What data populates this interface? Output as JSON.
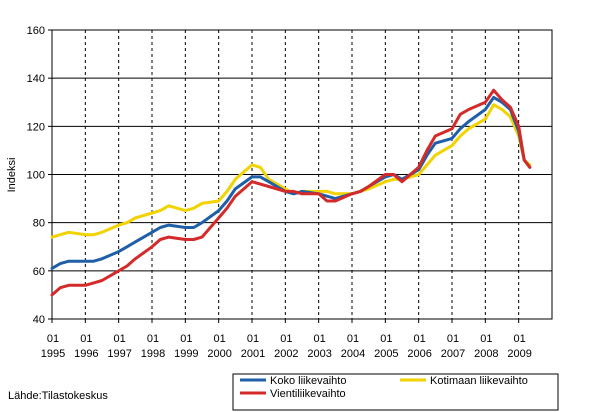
{
  "chart_data": {
    "type": "line",
    "ylabel": "Indeksi",
    "ylim": [
      40,
      160
    ],
    "yticks": [
      40,
      60,
      80,
      100,
      120,
      140,
      160
    ],
    "x_period": [
      "1995-01",
      "2009-12"
    ],
    "xticks": [
      {
        "month": "01",
        "year": "1995"
      },
      {
        "month": "01",
        "year": "1996"
      },
      {
        "month": "01",
        "year": "1997"
      },
      {
        "month": "01",
        "year": "1998"
      },
      {
        "month": "01",
        "year": "1999"
      },
      {
        "month": "01",
        "year": "2000"
      },
      {
        "month": "01",
        "year": "2001"
      },
      {
        "month": "01",
        "year": "2002"
      },
      {
        "month": "01",
        "year": "2003"
      },
      {
        "month": "01",
        "year": "2004"
      },
      {
        "month": "01",
        "year": "2005"
      },
      {
        "month": "01",
        "year": "2006"
      },
      {
        "month": "01",
        "year": "2007"
      },
      {
        "month": "01",
        "year": "2008"
      },
      {
        "month": "01",
        "year": "2009"
      }
    ],
    "grid": true,
    "legend_position": "bottom-right",
    "source": "Lähde:Tilastokeskus",
    "series": [
      {
        "name": "Koko liikevaihto",
        "color": "#1e5fa8",
        "points": [
          [
            "1995-01",
            61
          ],
          [
            "1995-04",
            63
          ],
          [
            "1995-07",
            64
          ],
          [
            "1996-01",
            64
          ],
          [
            "1996-04",
            64
          ],
          [
            "1996-07",
            65
          ],
          [
            "1997-01",
            68
          ],
          [
            "1997-04",
            70
          ],
          [
            "1997-07",
            72
          ],
          [
            "1998-01",
            76
          ],
          [
            "1998-04",
            78
          ],
          [
            "1998-07",
            79
          ],
          [
            "1999-01",
            78
          ],
          [
            "1999-04",
            78
          ],
          [
            "1999-07",
            80
          ],
          [
            "2000-01",
            85
          ],
          [
            "2000-04",
            89
          ],
          [
            "2000-07",
            94
          ],
          [
            "2001-01",
            99
          ],
          [
            "2001-04",
            99
          ],
          [
            "2001-07",
            97
          ],
          [
            "2002-01",
            93
          ],
          [
            "2002-04",
            92
          ],
          [
            "2002-07",
            93
          ],
          [
            "2003-01",
            92
          ],
          [
            "2003-04",
            91
          ],
          [
            "2003-07",
            90
          ],
          [
            "2004-01",
            92
          ],
          [
            "2004-04",
            93
          ],
          [
            "2004-07",
            95
          ],
          [
            "2005-01",
            99
          ],
          [
            "2005-04",
            100
          ],
          [
            "2005-07",
            98
          ],
          [
            "2006-01",
            102
          ],
          [
            "2006-04",
            108
          ],
          [
            "2006-07",
            113
          ],
          [
            "2007-01",
            115
          ],
          [
            "2007-04",
            119
          ],
          [
            "2007-07",
            122
          ],
          [
            "2008-01",
            127
          ],
          [
            "2008-04",
            132
          ],
          [
            "2008-07",
            130
          ],
          [
            "2008-10",
            127
          ],
          [
            "2009-01",
            118
          ],
          [
            "2009-03",
            106
          ],
          [
            "2009-05",
            103
          ]
        ]
      },
      {
        "name": "Vientiliikevaihto",
        "color": "#d42a2a",
        "points": [
          [
            "1995-01",
            50
          ],
          [
            "1995-04",
            53
          ],
          [
            "1995-07",
            54
          ],
          [
            "1996-01",
            54
          ],
          [
            "1996-04",
            55
          ],
          [
            "1996-07",
            56
          ],
          [
            "1997-01",
            60
          ],
          [
            "1997-04",
            62
          ],
          [
            "1997-07",
            65
          ],
          [
            "1998-01",
            70
          ],
          [
            "1998-04",
            73
          ],
          [
            "1998-07",
            74
          ],
          [
            "1999-01",
            73
          ],
          [
            "1999-04",
            73
          ],
          [
            "1999-07",
            74
          ],
          [
            "2000-01",
            82
          ],
          [
            "2000-04",
            86
          ],
          [
            "2000-07",
            91
          ],
          [
            "2001-01",
            97
          ],
          [
            "2001-04",
            96
          ],
          [
            "2001-07",
            95
          ],
          [
            "2002-01",
            93
          ],
          [
            "2002-04",
            93
          ],
          [
            "2002-07",
            92
          ],
          [
            "2003-01",
            92
          ],
          [
            "2003-04",
            89
          ],
          [
            "2003-07",
            89
          ],
          [
            "2004-01",
            92
          ],
          [
            "2004-04",
            93
          ],
          [
            "2004-07",
            95
          ],
          [
            "2005-01",
            100
          ],
          [
            "2005-04",
            100
          ],
          [
            "2005-07",
            97
          ],
          [
            "2006-01",
            103
          ],
          [
            "2006-04",
            110
          ],
          [
            "2006-07",
            116
          ],
          [
            "2007-01",
            119
          ],
          [
            "2007-04",
            125
          ],
          [
            "2007-07",
            127
          ],
          [
            "2008-01",
            130
          ],
          [
            "2008-04",
            135
          ],
          [
            "2008-07",
            131
          ],
          [
            "2008-10",
            128
          ],
          [
            "2009-01",
            120
          ],
          [
            "2009-03",
            106
          ],
          [
            "2009-05",
            103
          ]
        ]
      },
      {
        "name": "Kotimaan liikevaihto",
        "color": "#f2d200",
        "points": [
          [
            "1995-01",
            74
          ],
          [
            "1995-04",
            75
          ],
          [
            "1995-07",
            76
          ],
          [
            "1996-01",
            75
          ],
          [
            "1996-04",
            75
          ],
          [
            "1996-07",
            76
          ],
          [
            "1997-01",
            79
          ],
          [
            "1997-04",
            80
          ],
          [
            "1997-07",
            82
          ],
          [
            "1998-01",
            84
          ],
          [
            "1998-04",
            85
          ],
          [
            "1998-07",
            87
          ],
          [
            "1999-01",
            85
          ],
          [
            "1999-04",
            86
          ],
          [
            "1999-07",
            88
          ],
          [
            "2000-01",
            89
          ],
          [
            "2000-04",
            93
          ],
          [
            "2000-07",
            98
          ],
          [
            "2001-01",
            104
          ],
          [
            "2001-04",
            103
          ],
          [
            "2001-07",
            98
          ],
          [
            "2002-01",
            94
          ],
          [
            "2002-04",
            92
          ],
          [
            "2002-07",
            93
          ],
          [
            "2003-01",
            93
          ],
          [
            "2003-04",
            93
          ],
          [
            "2003-07",
            92
          ],
          [
            "2004-01",
            92
          ],
          [
            "2004-04",
            93
          ],
          [
            "2004-07",
            94
          ],
          [
            "2005-01",
            97
          ],
          [
            "2005-04",
            98
          ],
          [
            "2005-07",
            98
          ],
          [
            "2006-01",
            100
          ],
          [
            "2006-04",
            104
          ],
          [
            "2006-07",
            108
          ],
          [
            "2007-01",
            112
          ],
          [
            "2007-04",
            116
          ],
          [
            "2007-07",
            119
          ],
          [
            "2008-01",
            123
          ],
          [
            "2008-04",
            129
          ],
          [
            "2008-07",
            127
          ],
          [
            "2008-10",
            124
          ],
          [
            "2009-01",
            116
          ],
          [
            "2009-03",
            106
          ],
          [
            "2009-05",
            104
          ]
        ]
      }
    ]
  }
}
